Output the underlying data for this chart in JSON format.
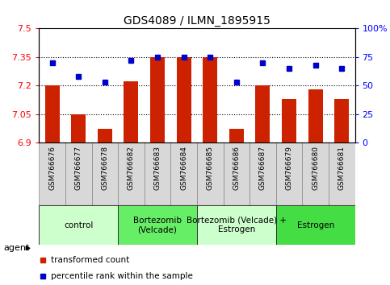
{
  "title": "GDS4089 / ILMN_1895915",
  "samples": [
    "GSM766676",
    "GSM766677",
    "GSM766678",
    "GSM766682",
    "GSM766683",
    "GSM766684",
    "GSM766685",
    "GSM766686",
    "GSM766687",
    "GSM766679",
    "GSM766680",
    "GSM766681"
  ],
  "bar_values": [
    7.2,
    7.05,
    6.97,
    7.22,
    7.35,
    7.35,
    7.35,
    6.97,
    7.2,
    7.13,
    7.18,
    7.13
  ],
  "dot_values": [
    70,
    58,
    53,
    72,
    75,
    75,
    75,
    53,
    70,
    65,
    68,
    65
  ],
  "ylim_left": [
    6.9,
    7.5
  ],
  "ylim_right": [
    0,
    100
  ],
  "yticks_left": [
    6.9,
    7.05,
    7.2,
    7.35,
    7.5
  ],
  "ytick_labels_left": [
    "6.9",
    "7.05",
    "7.2",
    "7.35",
    "7.5"
  ],
  "yticks_right": [
    0,
    25,
    50,
    75,
    100
  ],
  "ytick_labels_right": [
    "0",
    "25",
    "50",
    "75",
    "100%"
  ],
  "hlines": [
    7.05,
    7.2,
    7.35
  ],
  "bar_color": "#cc2200",
  "dot_color": "#0000cc",
  "bar_bottom": 6.9,
  "groups": [
    {
      "label": "control",
      "start": 0,
      "end": 3,
      "color": "#ccffcc"
    },
    {
      "label": "Bortezomib\n(Velcade)",
      "start": 3,
      "end": 6,
      "color": "#66ee66"
    },
    {
      "label": "Bortezomib (Velcade) +\nEstrogen",
      "start": 6,
      "end": 9,
      "color": "#ccffcc"
    },
    {
      "label": "Estrogen",
      "start": 9,
      "end": 12,
      "color": "#44dd44"
    }
  ],
  "legend_red_label": "transformed count",
  "legend_blue_label": "percentile rank within the sample",
  "agent_label": "agent",
  "title_fontsize": 10,
  "tick_fontsize": 7,
  "group_fontsize": 7.5
}
